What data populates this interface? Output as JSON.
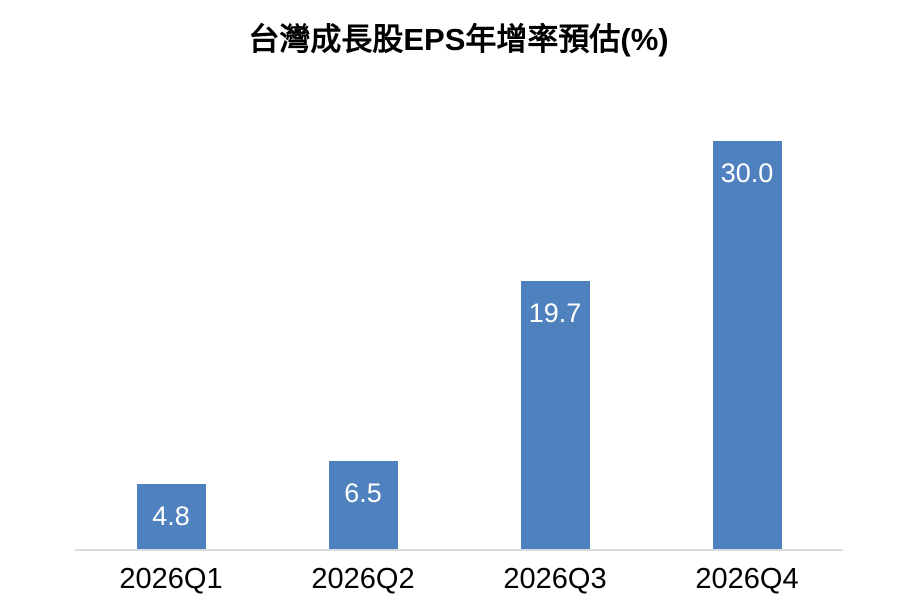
{
  "title": "台灣成長股EPS年增率預估(%)",
  "colors": {
    "bar": "#4e81bd",
    "banner_background": "#d9d9d9",
    "axis_line": "#d9d9d9",
    "value_label": "#ffffff",
    "category_label": "#000000",
    "page_background": "#ffffff"
  },
  "chart_data": {
    "type": "bar",
    "title": "台灣成長股EPS年增率預估(%)",
    "categories": [
      "2026Q1",
      "2026Q2",
      "2026Q3",
      "2026Q4"
    ],
    "values": [
      4.8,
      6.5,
      19.7,
      30.0
    ],
    "value_labels": [
      "4.8",
      "6.5",
      "19.7",
      "30.0"
    ],
    "xlabel": "",
    "ylabel": "",
    "ylim": [
      0,
      30
    ],
    "grid": false,
    "legend": false,
    "data_label_position": "inside-end",
    "bar_color": "#4e81bd"
  }
}
